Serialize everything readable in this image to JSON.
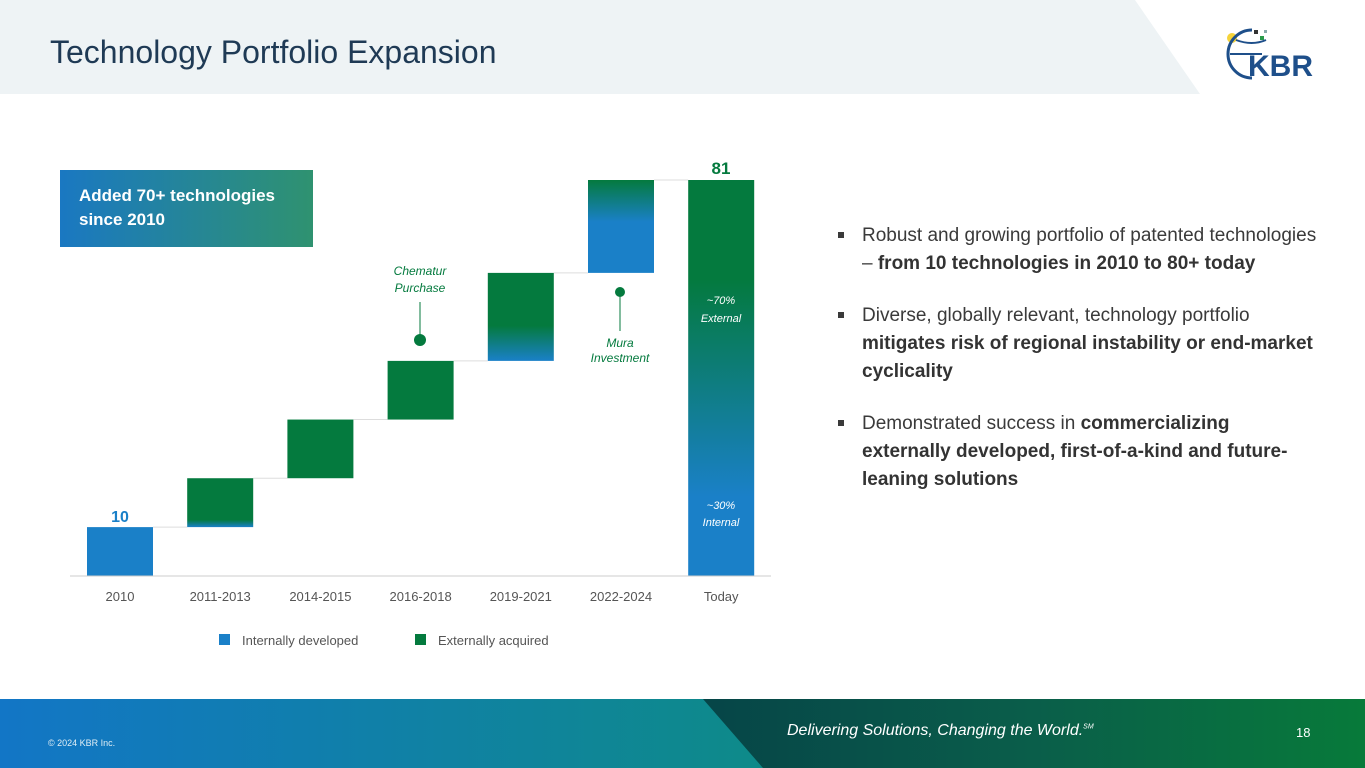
{
  "header": {
    "title": "Technology Portfolio Expansion",
    "logo_text": "KBR"
  },
  "callout": {
    "line1": "Added 70+ technologies",
    "line2": "since 2010"
  },
  "chart_data": {
    "type": "waterfall",
    "categories": [
      "2010",
      "2011-2013",
      "2014-2015",
      "2016-2018",
      "2019-2021",
      "2022-2024",
      "Today"
    ],
    "increments": [
      10,
      10,
      12,
      12,
      18,
      19,
      81
    ],
    "cumulative": [
      10,
      20,
      32,
      44,
      62,
      81,
      81
    ],
    "data_labels": {
      "first": "10",
      "last": "81"
    },
    "ylim": [
      0,
      81
    ],
    "legend": [
      {
        "name": "Internally developed",
        "color": "#1a80c8"
      },
      {
        "name": "Externally acquired",
        "color": "#047a3e"
      }
    ],
    "legend_position": "bottom",
    "annotations": [
      {
        "category": "2016-2018",
        "text_line1": "Chematur",
        "text_line2": "Purchase"
      },
      {
        "category": "2022-2024",
        "text_line1": "Mura",
        "text_line2": "Investment"
      }
    ],
    "today_split": {
      "external_pct": "~70%",
      "external_label": "External",
      "internal_pct": "~30%",
      "internal_label": "Internal"
    }
  },
  "bullets": [
    {
      "plain": "Robust and growing portfolio of patented technologies –  ",
      "bold": "from 10 technologies in 2010 to 80+ today",
      "plain2": ""
    },
    {
      "plain": "Diverse, globally relevant, technology portfolio ",
      "bold": "mitigates risk of regional instability or end-market cyclicality",
      "plain2": ""
    },
    {
      "plain": "Demonstrated success in ",
      "bold": "commercializing externally developed, first-of-a-kind and future-leaning solutions",
      "plain2": ""
    }
  ],
  "footer": {
    "copyright": "© 2024 KBR Inc.",
    "tagline": "Delivering Solutions, Changing the World.",
    "tagline_mark": "SM",
    "page": "18"
  }
}
